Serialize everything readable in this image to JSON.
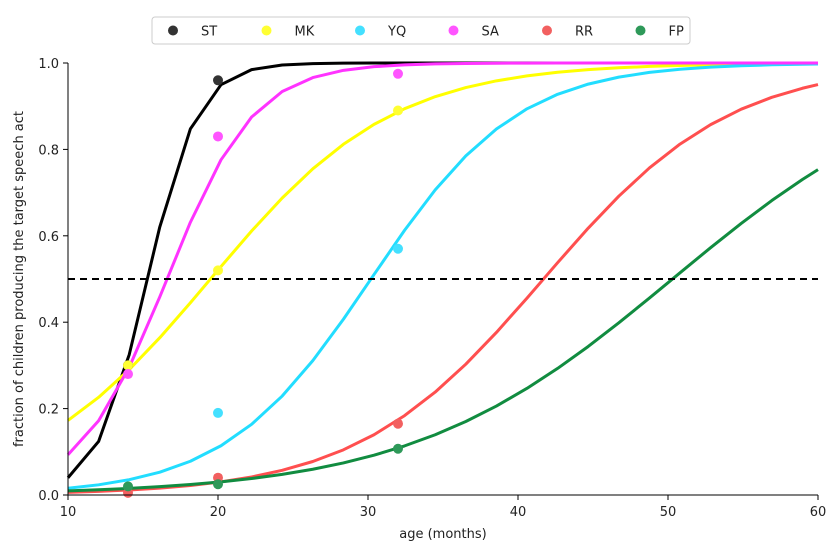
{
  "chart_data": {
    "type": "line",
    "xlabel": "age (months)",
    "ylabel": "fraction of children producing the target speech act",
    "xlim": [
      10,
      60
    ],
    "ylim": [
      0,
      1
    ],
    "x_ticks": [
      "10",
      "20",
      "30",
      "40",
      "50",
      "60"
    ],
    "y_ticks": [
      "0.0",
      "0.2",
      "0.4",
      "0.6",
      "0.8",
      "1.0"
    ],
    "legend_position": "top-center",
    "reference_line": {
      "y": 0.5,
      "style": "dashed",
      "color": "#000000"
    },
    "series": [
      {
        "name": "ST",
        "color": "#000000",
        "point_color": "#333333",
        "midpoint": 15.3,
        "slope": 0.6,
        "points": [
          [
            14,
            0.3
          ],
          [
            20,
            0.96
          ]
        ]
      },
      {
        "name": "MK",
        "color": "#ffff00",
        "point_color": "#ffff33",
        "midpoint": 19.5,
        "slope": 0.165,
        "points": [
          [
            14,
            0.3
          ],
          [
            20,
            0.52
          ],
          [
            32,
            0.89
          ]
        ]
      },
      {
        "name": "YQ",
        "color": "#22ddff",
        "point_color": "#44e0ff",
        "midpoint": 30.2,
        "slope": 0.205,
        "points": [
          [
            20,
            0.19
          ],
          [
            32,
            0.57
          ]
        ]
      },
      {
        "name": "SA",
        "color": "#ff33ff",
        "point_color": "#ff55ff",
        "midpoint": 16.6,
        "slope": 0.345,
        "points": [
          [
            14,
            0.28
          ],
          [
            20,
            0.83
          ],
          [
            32,
            0.975
          ]
        ]
      },
      {
        "name": "RR",
        "color": "#ff4f4f",
        "point_color": "#f26060",
        "midpoint": 41.7,
        "slope": 0.161,
        "points": [
          [
            14,
            0.005
          ],
          [
            20,
            0.04
          ],
          [
            32,
            0.165
          ]
        ]
      },
      {
        "name": "FP",
        "color": "#118c40",
        "point_color": "#2e9959",
        "midpoint": 50.3,
        "slope": 0.115,
        "points": [
          [
            14,
            0.02
          ],
          [
            20,
            0.025
          ],
          [
            32,
            0.107
          ]
        ]
      }
    ]
  }
}
